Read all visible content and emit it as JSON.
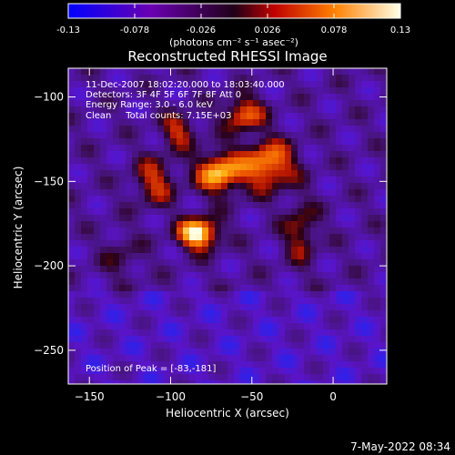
{
  "colorbar": {
    "ticks": [
      "-0.13",
      "-0.078",
      "-0.026",
      "0.026",
      "0.078",
      "0.13"
    ],
    "tick_values": [
      -0.13,
      -0.078,
      -0.026,
      0.026,
      0.078,
      0.13
    ],
    "vmin": -0.13,
    "vmax": 0.13,
    "units": "(photons cm⁻² s⁻¹ asec⁻²)",
    "colormap": "blue-purple-red-orange-yellow-white"
  },
  "chart_data": {
    "type": "heatmap",
    "title": "Reconstructed RHESSI Image",
    "xlabel": "Heliocentric X (arcsec)",
    "ylabel": "Heliocentric Y (arcsec)",
    "xlim": [
      -163,
      33
    ],
    "ylim": [
      -270,
      -83
    ],
    "xticks": [
      -150,
      -100,
      -50,
      0
    ],
    "yticks": [
      -100,
      -150,
      -200,
      -250
    ],
    "xtick_labels": [
      "−150",
      "−100",
      "−50",
      "0"
    ],
    "ytick_labels": [
      "−100",
      "−150",
      "−200",
      "−250"
    ],
    "peak": [
      -83,
      -181
    ],
    "grid": false,
    "annotations": {
      "time": "11-Dec-2007 18:02:20.000 to 18:03:40.000",
      "detectors": "Detectors: 3F 4F 5F 6F 7F 8F Att 0",
      "energy": "Energy Range: 3.0 - 6.0 keV",
      "clean": "Clean     Total counts: 7.15E+03",
      "peak_label": "Position of Peak = [-83,-181]"
    }
  },
  "footer": {
    "date": "7-May-2022 08:34"
  }
}
